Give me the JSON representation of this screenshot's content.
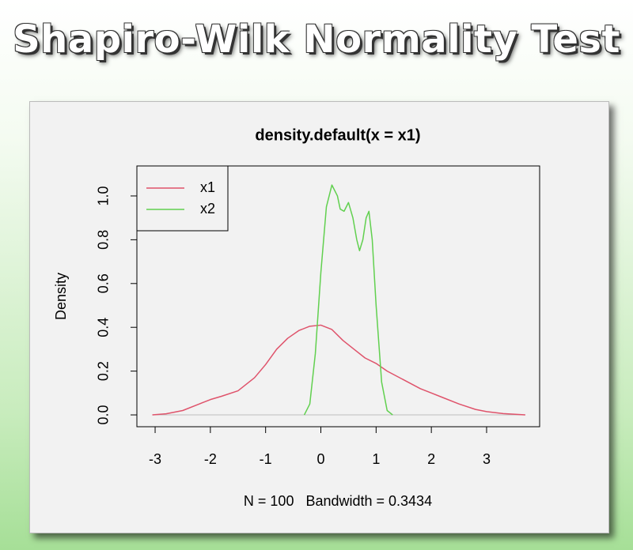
{
  "page_title": "Shapiro-Wilk Normality Test",
  "chart_data": {
    "type": "line",
    "title": "density.default(x = x1)",
    "x_label": "N = 100   Bandwidth = 0.3434",
    "y_label": "Density",
    "xlim": [
      -3.33,
      3.96
    ],
    "ylim": [
      -0.054,
      1.137
    ],
    "xticks": [
      -3,
      -2,
      -1,
      0,
      1,
      2,
      3
    ],
    "yticks": [
      {
        "value": 0,
        "label": "0.0"
      },
      {
        "value": 0.2,
        "label": "0.2"
      },
      {
        "value": 0.4,
        "label": "0.4"
      },
      {
        "value": 0.6,
        "label": "0.6"
      },
      {
        "value": 0.8,
        "label": "0.8"
      },
      {
        "value": 1,
        "label": "1.0"
      }
    ],
    "legend": "top-left",
    "series": [
      {
        "name": "x1",
        "color": "#DF536B",
        "x": [
          -3.05,
          -2.8,
          -2.5,
          -2.2,
          -2.0,
          -1.8,
          -1.5,
          -1.2,
          -1.0,
          -0.8,
          -0.6,
          -0.4,
          -0.2,
          0,
          0.2,
          0.4,
          0.6,
          0.8,
          1.0,
          1.2,
          1.5,
          1.8,
          2.0,
          2.2,
          2.5,
          2.8,
          3.0,
          3.3,
          3.7
        ],
        "values": [
          0.0,
          0.005,
          0.02,
          0.05,
          0.07,
          0.085,
          0.11,
          0.17,
          0.23,
          0.3,
          0.35,
          0.385,
          0.405,
          0.41,
          0.39,
          0.34,
          0.3,
          0.26,
          0.235,
          0.2,
          0.16,
          0.12,
          0.1,
          0.08,
          0.05,
          0.025,
          0.015,
          0.006,
          0.0
        ]
      },
      {
        "name": "x2",
        "color": "#61D04F",
        "x": [
          -0.3,
          -0.2,
          -0.1,
          0,
          0.1,
          0.2,
          0.3,
          0.35,
          0.42,
          0.5,
          0.58,
          0.65,
          0.7,
          0.76,
          0.82,
          0.87,
          0.93,
          1.0,
          1.1,
          1.2,
          1.3
        ],
        "values": [
          0,
          0.05,
          0.28,
          0.65,
          0.95,
          1.05,
          1.0,
          0.94,
          0.93,
          0.97,
          0.9,
          0.8,
          0.75,
          0.8,
          0.9,
          0.93,
          0.8,
          0.5,
          0.15,
          0.02,
          0
        ]
      }
    ]
  }
}
